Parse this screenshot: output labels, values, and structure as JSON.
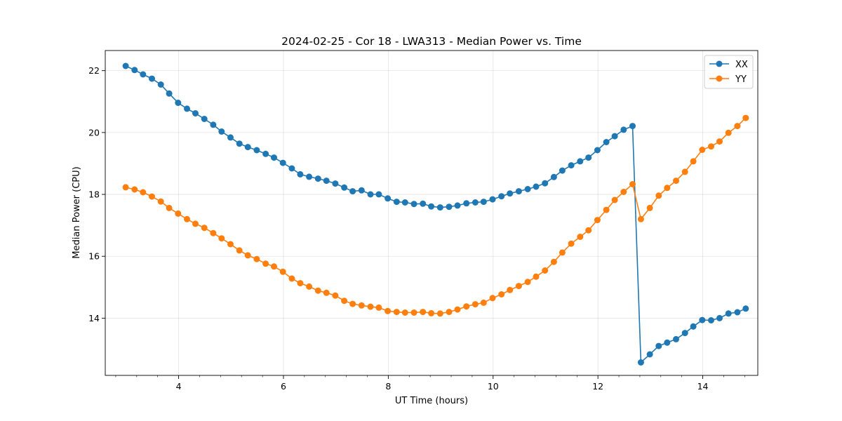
{
  "chart_data": {
    "type": "line",
    "title": "2024-02-25 - Cor 18 - LWA313 - Median Power vs. Time",
    "xlabel": "UT Time (hours)",
    "ylabel": "Median Power (CPU)",
    "xlim": [
      2.6,
      15.05
    ],
    "ylim": [
      12.15,
      22.65
    ],
    "xticks": [
      4,
      6,
      8,
      10,
      12,
      14
    ],
    "yticks": [
      14,
      16,
      18,
      20,
      22
    ],
    "x_minor_step": 0.4,
    "grid": true,
    "legend_position": "top-right",
    "colors": {
      "XX": "#1f77b4",
      "YY": "#ff7f0e"
    },
    "x": [
      2.99,
      3.16,
      3.32,
      3.49,
      3.66,
      3.82,
      3.99,
      4.16,
      4.32,
      4.49,
      4.66,
      4.82,
      4.99,
      5.16,
      5.32,
      5.49,
      5.66,
      5.82,
      5.99,
      6.16,
      6.32,
      6.49,
      6.66,
      6.82,
      6.99,
      7.16,
      7.32,
      7.49,
      7.66,
      7.82,
      7.99,
      8.16,
      8.32,
      8.49,
      8.66,
      8.82,
      8.99,
      9.16,
      9.32,
      9.49,
      9.66,
      9.82,
      9.99,
      10.16,
      10.32,
      10.49,
      10.66,
      10.82,
      10.99,
      11.16,
      11.32,
      11.49,
      11.66,
      11.82,
      11.99,
      12.16,
      12.32,
      12.49,
      12.66,
      12.82,
      12.99,
      13.16,
      13.32,
      13.49,
      13.66,
      13.82,
      13.99,
      14.16,
      14.32,
      14.49,
      14.66,
      14.82
    ],
    "series": [
      {
        "name": "XX",
        "values": [
          22.15,
          22.02,
          21.88,
          21.74,
          21.55,
          21.26,
          20.96,
          20.77,
          20.62,
          20.44,
          20.25,
          20.03,
          19.84,
          19.64,
          19.53,
          19.43,
          19.31,
          19.19,
          19.02,
          18.84,
          18.65,
          18.57,
          18.51,
          18.44,
          18.35,
          18.22,
          18.1,
          18.13,
          18.0,
          18.0,
          17.87,
          17.76,
          17.74,
          17.69,
          17.7,
          17.61,
          17.58,
          17.6,
          17.64,
          17.71,
          17.74,
          17.76,
          17.84,
          17.94,
          18.03,
          18.1,
          18.17,
          18.25,
          18.36,
          18.56,
          18.77,
          18.94,
          19.07,
          19.19,
          19.43,
          19.69,
          19.88,
          20.09,
          20.21,
          12.57,
          12.83,
          13.1,
          13.21,
          13.32,
          13.52,
          13.73,
          13.94,
          13.93,
          14.0,
          14.15,
          14.19,
          14.31
        ]
      },
      {
        "name": "YY",
        "values": [
          18.23,
          18.16,
          18.07,
          17.93,
          17.77,
          17.56,
          17.38,
          17.2,
          17.05,
          16.92,
          16.75,
          16.58,
          16.39,
          16.19,
          16.03,
          15.91,
          15.76,
          15.67,
          15.5,
          15.28,
          15.13,
          15.02,
          14.89,
          14.82,
          14.73,
          14.56,
          14.46,
          14.41,
          14.37,
          14.34,
          14.23,
          14.2,
          14.18,
          14.18,
          14.2,
          14.16,
          14.15,
          14.2,
          14.28,
          14.38,
          14.45,
          14.5,
          14.65,
          14.77,
          14.91,
          15.04,
          15.17,
          15.34,
          15.54,
          15.82,
          16.12,
          16.41,
          16.63,
          16.84,
          17.17,
          17.5,
          17.82,
          18.08,
          18.33,
          17.2,
          17.56,
          17.96,
          18.21,
          18.44,
          18.73,
          19.07,
          19.44,
          19.55,
          19.71,
          19.99,
          20.21,
          20.47
        ]
      }
    ]
  }
}
